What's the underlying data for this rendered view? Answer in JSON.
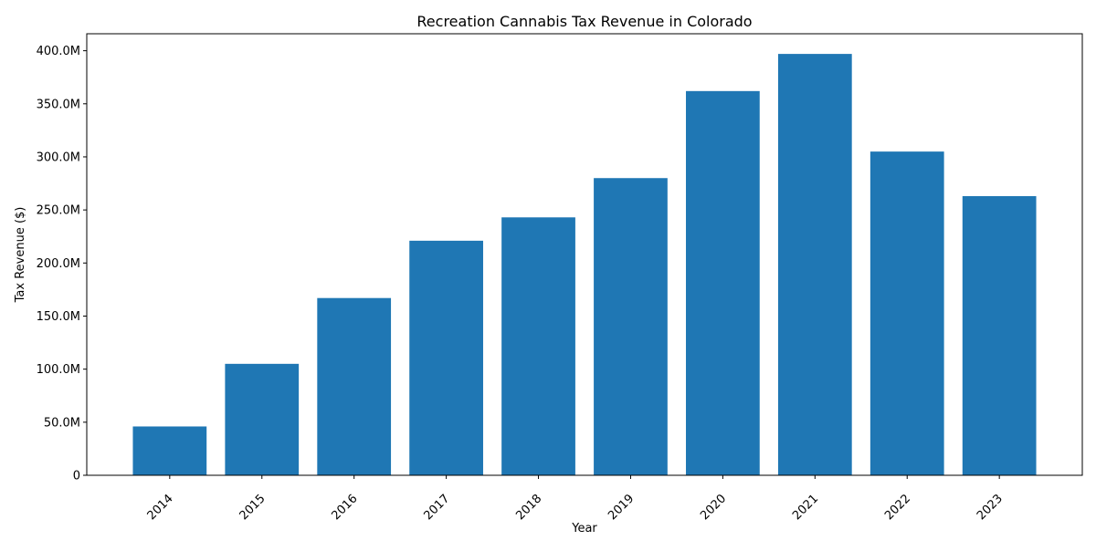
{
  "chart_data": {
    "type": "bar",
    "title": "Recreation Cannabis Tax Revenue in Colorado",
    "xlabel": "Year",
    "ylabel": "Tax Revenue ($)",
    "categories": [
      "2014",
      "2015",
      "2016",
      "2017",
      "2018",
      "2019",
      "2020",
      "2021",
      "2022",
      "2023"
    ],
    "values": [
      46000000,
      105000000,
      167000000,
      221000000,
      243000000,
      280000000,
      362000000,
      397000000,
      305000000,
      263000000
    ],
    "ylim": [
      0,
      416000000
    ],
    "yticks": [
      0,
      50000000,
      100000000,
      150000000,
      200000000,
      250000000,
      300000000,
      350000000,
      400000000
    ],
    "ytick_labels": [
      "0",
      "50.0M",
      "100.0M",
      "150.0M",
      "200.0M",
      "250.0M",
      "300.0M",
      "350.0M",
      "400.0M"
    ],
    "bar_color": "#1f77b4",
    "grid": false,
    "legend": "none",
    "xtick_rotation_deg": 45
  }
}
